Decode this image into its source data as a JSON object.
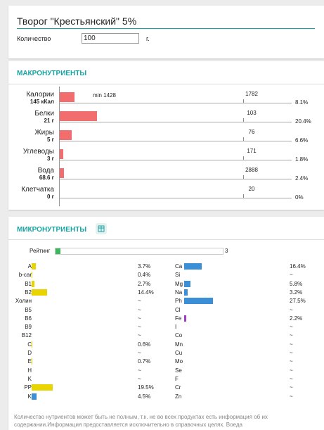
{
  "title": "Творог \"Крестьянский\" 5%",
  "quantity": {
    "label": "Количество",
    "value": "100",
    "unit": "г."
  },
  "macro": {
    "header": "МАКРОНУТРИЕНТЫ",
    "min": "min 1428",
    "rows": [
      {
        "name": "Калории",
        "amount": "145 кКал",
        "norm": "1782",
        "percent": "8.1%"
      },
      {
        "name": "Белки",
        "amount": "21 г",
        "norm": "103",
        "percent": "20.4%"
      },
      {
        "name": "Жиры",
        "amount": "5 г",
        "norm": "76",
        "percent": "6.6%"
      },
      {
        "name": "Углеводы",
        "amount": "3 г",
        "norm": "171",
        "percent": "1.8%"
      },
      {
        "name": "Вода",
        "amount": "68.6 г",
        "norm": "2888",
        "percent": "2.4%"
      },
      {
        "name": "Клетчатка",
        "amount": "0 г",
        "norm": "20",
        "percent": "0%"
      }
    ]
  },
  "micro": {
    "header": "МИКРОНУТРИЕНТЫ",
    "rating": {
      "label": "Рейтинг",
      "value": "3"
    },
    "vitamins": [
      {
        "name": "A",
        "percent": "3.7%",
        "color": "#e8d400"
      },
      {
        "name": "b-car",
        "percent": "0.4%",
        "color": "#e8d400"
      },
      {
        "name": "B1",
        "percent": "2.7%",
        "color": "#e8d400"
      },
      {
        "name": "B2",
        "percent": "14.4%",
        "color": "#e8d400"
      },
      {
        "name": "Холин",
        "percent": "~",
        "color": "#e8d400"
      },
      {
        "name": "B5",
        "percent": "~",
        "color": "#e8d400"
      },
      {
        "name": "B6",
        "percent": "~",
        "color": "#e8d400"
      },
      {
        "name": "B9",
        "percent": "~",
        "color": "#e8d400"
      },
      {
        "name": "B12",
        "percent": "~",
        "color": "#e8d400"
      },
      {
        "name": "C",
        "percent": "0.6%",
        "color": "#e8d400"
      },
      {
        "name": "D",
        "percent": "~",
        "color": "#e8d400"
      },
      {
        "name": "E",
        "percent": "0.7%",
        "color": "#e8d400"
      },
      {
        "name": "H",
        "percent": "~",
        "color": "#e8d400"
      },
      {
        "name": "K",
        "percent": "~",
        "color": "#e8d400"
      },
      {
        "name": "PP",
        "percent": "19.5%",
        "color": "#e8d400"
      },
      {
        "name": "K",
        "percent": "4.5%",
        "color": "#3a8fd6"
      }
    ],
    "minerals": [
      {
        "name": "Ca",
        "percent": "16.4%",
        "color": "#3a8fd6"
      },
      {
        "name": "Si",
        "percent": "~",
        "color": "#3a8fd6"
      },
      {
        "name": "Mg",
        "percent": "5.8%",
        "color": "#3a8fd6"
      },
      {
        "name": "Na",
        "percent": "3.2%",
        "color": "#3a8fd6"
      },
      {
        "name": "Ph",
        "percent": "27.5%",
        "color": "#3a8fd6"
      },
      {
        "name": "Cl",
        "percent": "~",
        "color": "#3a8fd6"
      },
      {
        "name": "Fe",
        "percent": "2.2%",
        "color": "#a040c0"
      },
      {
        "name": "I",
        "percent": "~",
        "color": "#3a8fd6"
      },
      {
        "name": "Co",
        "percent": "~",
        "color": "#3a8fd6"
      },
      {
        "name": "Mn",
        "percent": "~",
        "color": "#3a8fd6"
      },
      {
        "name": "Cu",
        "percent": "~",
        "color": "#3a8fd6"
      },
      {
        "name": "Mo",
        "percent": "~",
        "color": "#3a8fd6"
      },
      {
        "name": "Se",
        "percent": "~",
        "color": "#3a8fd6"
      },
      {
        "name": "F",
        "percent": "~",
        "color": "#3a8fd6"
      },
      {
        "name": "Cr",
        "percent": "~",
        "color": "#3a8fd6"
      },
      {
        "name": "Zn",
        "percent": "~",
        "color": "#3a8fd6"
      }
    ],
    "note": "Количество нутриентов может быть не полным, т.к. не во всех продуктах есть информация об их содержании.Информация предоставляется исключительно в справочных целях. Воеда"
  }
}
